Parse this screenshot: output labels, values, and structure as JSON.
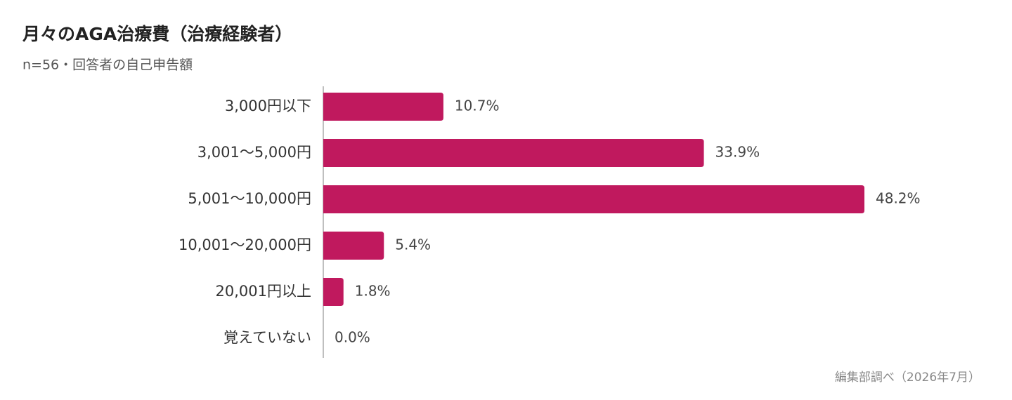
{
  "chart_data": {
    "type": "bar",
    "orientation": "horizontal",
    "title": "月々のAGA治療費（治療経験者）",
    "subtitle": "n=56・回答者の自己申告額",
    "categories": [
      "3,000円以下",
      "3,001〜5,000円",
      "5,001〜10,000円",
      "10,001〜20,000円",
      "20,001円以上",
      "覚えていない"
    ],
    "values": [
      10.7,
      33.9,
      48.2,
      5.4,
      1.8,
      0.0
    ],
    "value_labels": [
      "10.7%",
      "33.9%",
      "48.2%",
      "5.4%",
      "1.8%",
      "0.0%"
    ],
    "color": "#c0195e",
    "source": "編集部調べ（2026年7月）"
  }
}
